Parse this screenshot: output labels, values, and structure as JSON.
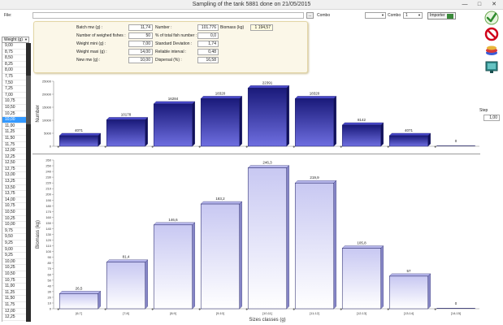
{
  "window": {
    "title": "Sampling of the tank 5881 done on 21/05/2015",
    "minimize": "—",
    "maximize": "□",
    "close": "✕"
  },
  "toolbar": {
    "file_label": "File:",
    "file_value": "",
    "browse_label": "...",
    "combo1_label": "Combo",
    "combo1_value": "",
    "combo2_label": "Combo",
    "combo2_value": "1",
    "import_label": "Importer"
  },
  "side_icons": [
    "check-icon",
    "cancel-icon",
    "layers-icon",
    "monitor-icon"
  ],
  "stats": {
    "batch_mw_label": "Batch mw (g) :",
    "batch_mw": "11,74",
    "weighed_fishes_label": "Number of weighed fishes :",
    "weighed_fishes": "50",
    "weight_min_label": "Weight mini (g) :",
    "weight_min": "7,00",
    "weight_max_label": "Weight maxi (g) :",
    "weight_max": "14,00",
    "new_mw_label": "New mw (g) :",
    "new_mw": "10,00",
    "number_label": "Number :",
    "number": "101.776",
    "pct_total_label": "% of total fish number :",
    "pct_total": "0,0",
    "std_dev_label": "Standard Deviation :",
    "std_dev": "1,74",
    "reliable_label": "Reliable interval :",
    "reliable": "0,48",
    "dispersal_label": "Dispersal (%) :",
    "dispersal": "16,58",
    "biomass_label": "Biomass (kg)",
    "biomass": "1 194,57"
  },
  "weight_list": {
    "header": "Weight (g)",
    "items": [
      "9,00",
      "8,75",
      "8,50",
      "8,25",
      "8,00",
      "7,75",
      "7,50",
      "7,25",
      "7,00",
      "10,75",
      "10,50",
      "10,25",
      "10,00",
      "11,00",
      "11,25",
      "11,50",
      "11,75",
      "12,00",
      "12,25",
      "12,50",
      "12,75",
      "13,00",
      "13,25",
      "13,50",
      "13,75",
      "14,00",
      "10,75",
      "10,50",
      "10,25",
      "10,00",
      "9,75",
      "9,50",
      "9,25",
      "9,00",
      "9,25",
      "10,00",
      "10,25",
      "10,50",
      "10,75",
      "11,00",
      "11,25",
      "11,50",
      "11,75",
      "12,00",
      "12,25"
    ],
    "selected_index": 12
  },
  "step": {
    "label": "Step",
    "value": "1,00"
  },
  "chart_data": [
    {
      "type": "bar",
      "ylabel": "Number",
      "categories": [
        "[6;7[",
        "[7;8[",
        "[8;9[",
        "[9;10[",
        "[10;11[",
        "[11;12[",
        "[12;13[",
        "[13;14[",
        "[14;15["
      ],
      "values": [
        4071,
        10178,
        16284,
        18320,
        22391,
        18320,
        8142,
        4071,
        0
      ],
      "value_labels": [
        "4071",
        "10178",
        "16284",
        "18320",
        "22391",
        "18320",
        "8142",
        "4071",
        "0"
      ],
      "ylim": [
        0,
        25000
      ],
      "yticks": [
        "0",
        "5000",
        "10000",
        "15000",
        "20000",
        "25000"
      ],
      "bar_color": "#2727a8"
    },
    {
      "type": "bar",
      "ylabel": "Biomass (kg)",
      "xlabel": "Sizes classes (g)",
      "categories": [
        "[6;7[",
        "[7;8[",
        "[8;9[",
        "[9;10[",
        "[10;11[",
        "[11;12[",
        "[12;13[",
        "[13;14[",
        "[14;15["
      ],
      "values": [
        26.5,
        81.4,
        146.6,
        183.2,
        246.3,
        219.9,
        105.8,
        57,
        0
      ],
      "value_labels": [
        "26,5",
        "81,4",
        "146,6",
        "183,2",
        "246,3",
        "219,9",
        "105,8",
        "57",
        "0"
      ],
      "ylim": [
        0,
        260
      ],
      "yticks": [
        "0",
        "10",
        "20",
        "30",
        "40",
        "50",
        "60",
        "70",
        "80",
        "90",
        "100",
        "110",
        "120",
        "130",
        "140",
        "150",
        "160",
        "170",
        "180",
        "190",
        "200",
        "210",
        "220",
        "230",
        "240",
        "250",
        "260"
      ],
      "bar_color": "#dcdcf6"
    }
  ]
}
